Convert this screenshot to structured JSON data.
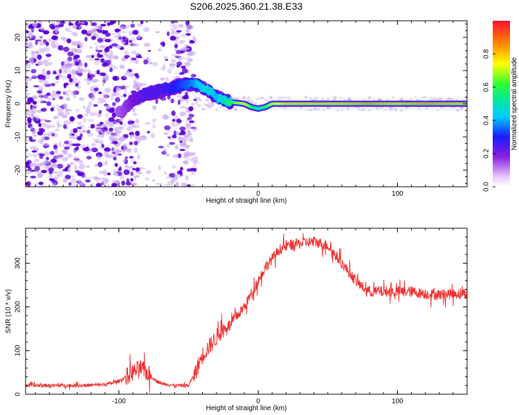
{
  "title": "S206.2025.360.21.38.E33",
  "colors": {
    "axis": "#000000",
    "snr_line": "#ee3030",
    "low_amplitude": "#c9a8f0",
    "mid_amplitude": "#5a00d8"
  },
  "chart_data": [
    {
      "type": "heatmap",
      "xlabel": "Height of straight line (km)",
      "ylabel": "Frequency (Hz)",
      "xlim": [
        -167,
        150
      ],
      "ylim": [
        -25,
        25
      ],
      "xticks": [
        -100,
        0,
        100
      ],
      "yticks": [
        -20,
        -10,
        0,
        10,
        20
      ],
      "grid": false,
      "colorbar": {
        "label": "Normalized spectral amplitude",
        "range": [
          0.0,
          1.0
        ],
        "ticks": [
          "0.0",
          "0.2",
          "0.4",
          "0.6",
          "0.8"
        ]
      },
      "signal_ridge": {
        "height_km": [
          -100,
          -90,
          -80,
          -70,
          -60,
          -50,
          -45,
          -40,
          -35,
          -30,
          -25,
          -20,
          -10,
          -5,
          0,
          5,
          10,
          20,
          40,
          60,
          80,
          100,
          120,
          150
        ],
        "frequency_hz": [
          -3,
          1,
          3,
          4,
          5,
          6,
          6,
          5,
          4,
          2,
          1,
          0.5,
          0,
          -1,
          -1.5,
          -1,
          0,
          0,
          0,
          0,
          0,
          0,
          0,
          0
        ],
        "amplitude": [
          0.15,
          0.2,
          0.25,
          0.25,
          0.3,
          0.35,
          0.4,
          0.45,
          0.45,
          0.4,
          0.5,
          0.6,
          0.75,
          0.6,
          0.5,
          0.6,
          0.7,
          0.8,
          0.8,
          0.8,
          0.85,
          0.8,
          0.85,
          0.8
        ]
      }
    },
    {
      "type": "line",
      "xlabel": "Height of straight line (km)",
      "ylabel": "SNR (10 * v/v)",
      "xlim": [
        -167,
        150
      ],
      "ylim": [
        0,
        380
      ],
      "xticks": [
        -100,
        0,
        100
      ],
      "yticks": [
        0,
        100,
        200,
        300
      ],
      "grid": false,
      "series": [
        {
          "name": "SNR",
          "x": [
            -167,
            -150,
            -130,
            -110,
            -100,
            -90,
            -85,
            -80,
            -75,
            -70,
            -60,
            -50,
            -45,
            -40,
            -35,
            -30,
            -25,
            -20,
            -15,
            -10,
            -5,
            0,
            5,
            10,
            15,
            20,
            30,
            40,
            50,
            55,
            60,
            65,
            70,
            75,
            80,
            90,
            100,
            110,
            120,
            130,
            140,
            150
          ],
          "y": [
            20,
            20,
            20,
            22,
            30,
            50,
            60,
            50,
            35,
            25,
            20,
            20,
            50,
            90,
            110,
            130,
            150,
            160,
            180,
            200,
            230,
            260,
            290,
            310,
            330,
            340,
            345,
            350,
            340,
            320,
            300,
            280,
            260,
            245,
            235,
            235,
            235,
            235,
            230,
            228,
            230,
            232
          ]
        }
      ]
    }
  ]
}
